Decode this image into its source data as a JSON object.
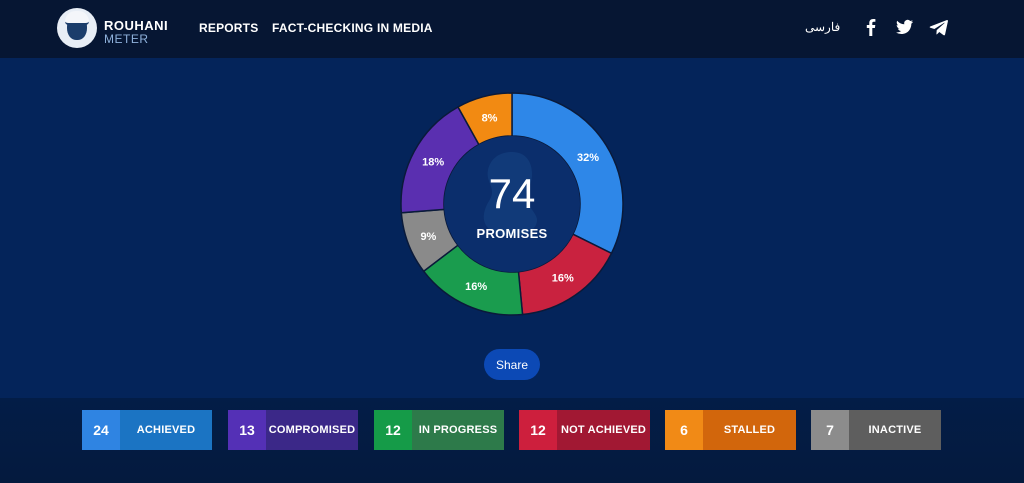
{
  "brand": {
    "name_line1": "ROUHANI",
    "name_line2": "METER"
  },
  "nav": {
    "items": [
      "REPORTS",
      "FACT-CHECKING",
      "IN MEDIA"
    ]
  },
  "language_link": "فارسی",
  "social_icons": [
    "facebook-icon",
    "twitter-icon",
    "telegram-icon"
  ],
  "summary": {
    "total": "74",
    "total_label": "PROMISES"
  },
  "share_label": "Share",
  "statuses": [
    {
      "key": "achieved",
      "label": "ACHIEVED",
      "count": "24",
      "percent": 32,
      "percent_label": "32%",
      "color": "#2e87e8",
      "num_bg": "#2f84e2",
      "label_bg": "#1b74c3"
    },
    {
      "key": "not-achieved",
      "label": "NOT ACHIEVED",
      "count": "12",
      "percent": 16,
      "percent_label": "16%",
      "color": "#c9223f",
      "num_bg": "#cd1f3d",
      "label_bg": "#a11833"
    },
    {
      "key": "in-progress",
      "label": "IN PROGRESS",
      "count": "12",
      "percent": 16,
      "percent_label": "16%",
      "color": "#1a9c4e",
      "num_bg": "#159b48",
      "label_bg": "#2d7a4a"
    },
    {
      "key": "inactive",
      "label": "INACTIVE",
      "count": "7",
      "percent": 9,
      "percent_label": "9%",
      "color": "#8a8a8a",
      "num_bg": "#8c8c8c",
      "label_bg": "#5e5e5e"
    },
    {
      "key": "compromised",
      "label": "COMPROMISED",
      "count": "13",
      "percent": 18,
      "percent_label": "18%",
      "color": "#5a2fb0",
      "num_bg": "#5430b6",
      "label_bg": "#3b2888"
    },
    {
      "key": "stalled",
      "label": "STALLED",
      "count": "6",
      "percent": 8,
      "percent_label": "8%",
      "color": "#f28a12",
      "num_bg": "#f18a16",
      "label_bg": "#d2660c"
    }
  ],
  "legend_order": [
    "achieved",
    "compromised",
    "in-progress",
    "not-achieved",
    "stalled",
    "inactive"
  ],
  "chart_data": {
    "type": "pie",
    "donut": true,
    "categories": [
      "ACHIEVED",
      "NOT ACHIEVED",
      "IN PROGRESS",
      "INACTIVE",
      "COMPROMISED",
      "STALLED"
    ],
    "values": [
      32,
      16,
      16,
      9,
      18,
      8
    ],
    "counts": [
      24,
      12,
      12,
      7,
      13,
      6
    ],
    "title": "",
    "center_value": 74,
    "center_label": "PROMISES"
  }
}
